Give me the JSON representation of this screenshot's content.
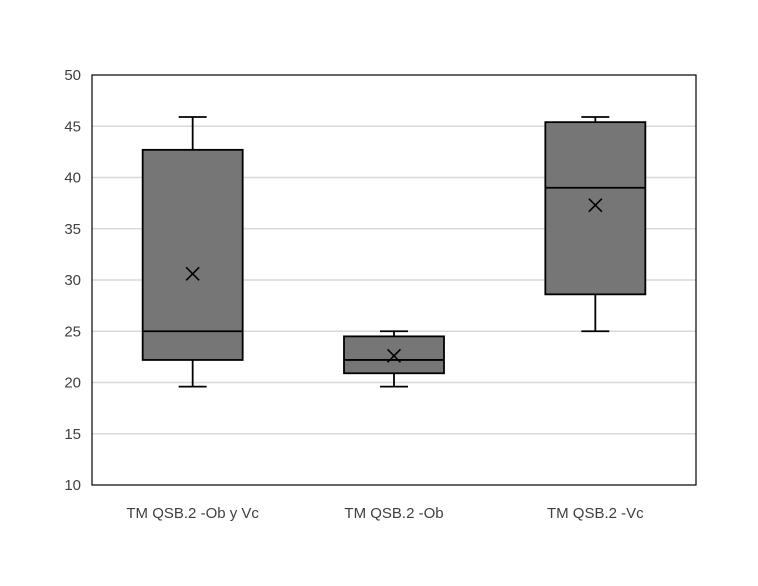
{
  "chart_data": {
    "type": "boxplot",
    "title": "",
    "xlabel": "",
    "ylabel": "",
    "ylim": [
      10,
      50
    ],
    "yticks": [
      10,
      15,
      20,
      25,
      30,
      35,
      40,
      45,
      50
    ],
    "grid": true,
    "legend": "none",
    "categories": [
      "TM QSB.2 -Ob y Vc",
      "TM QSB.2 -Ob",
      "TM QSB.2 -Vc"
    ],
    "boxes": [
      {
        "category": "TM QSB.2 -Ob y Vc",
        "min": 19.6,
        "q1": 22.2,
        "median": 25.0,
        "q3": 42.7,
        "max": 45.9,
        "mean": 30.6
      },
      {
        "category": "TM QSB.2 -Ob",
        "min": 19.6,
        "q1": 20.9,
        "median": 22.2,
        "q3": 24.5,
        "max": 25.0,
        "mean": 22.6
      },
      {
        "category": "TM QSB.2 -Vc",
        "min": 25.0,
        "q1": 28.6,
        "median": 39.0,
        "q3": 45.4,
        "max": 45.9,
        "mean": 37.3
      }
    ],
    "colors": {
      "box_fill": "#767676",
      "stroke": "#000000",
      "grid": "#d9d9d9",
      "axis": "#000000",
      "text": "#404040"
    }
  }
}
